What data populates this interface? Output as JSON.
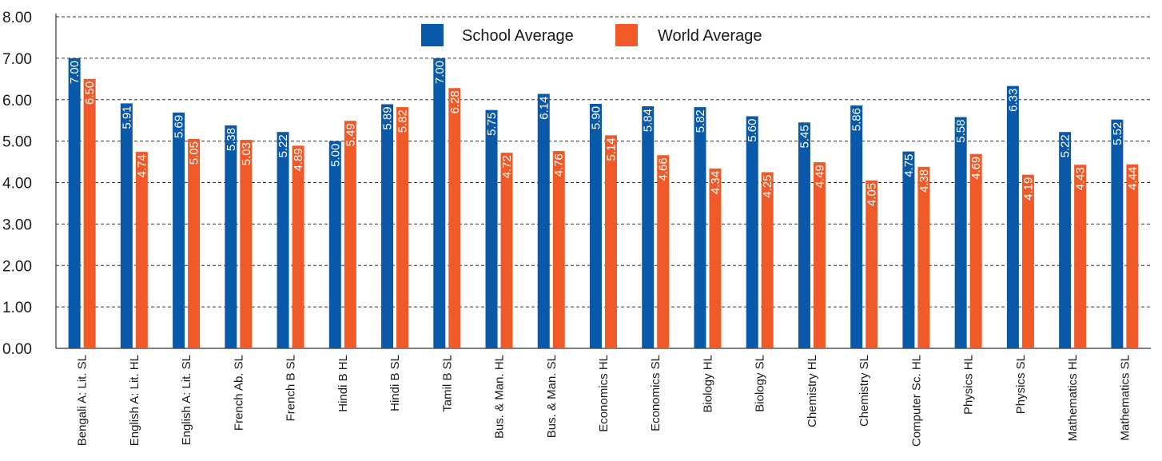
{
  "chart_data": {
    "type": "bar",
    "categories": [
      "Bengali A: Lit. SL",
      "English A: Lit. HL",
      "English A: Lit. SL",
      "French Ab. SL",
      "French B SL",
      "Hindi B HL",
      "Hindi B SL",
      "Tamil B SL",
      "Bus. & Man. HL",
      "Bus. & Man. SL",
      "Economics HL",
      "Economics SL",
      "Biology HL",
      "Biology SL",
      "Chemistry HL",
      "Chemistry SL",
      "Computer Sc. HL",
      "Physics HL",
      "Physics SL",
      "Mathematics HL",
      "Mathematics SL"
    ],
    "series": [
      {
        "name": "School Average",
        "color": "#0a58a8",
        "values": [
          7.0,
          5.91,
          5.69,
          5.38,
          5.22,
          5.0,
          5.89,
          7.0,
          5.75,
          6.14,
          5.9,
          5.84,
          5.82,
          5.6,
          5.45,
          5.86,
          4.75,
          5.58,
          6.33,
          5.22,
          5.52
        ]
      },
      {
        "name": "World Average",
        "color": "#f05a28",
        "values": [
          6.5,
          4.74,
          5.05,
          5.03,
          4.89,
          5.49,
          5.82,
          6.28,
          4.72,
          4.76,
          5.14,
          4.66,
          4.34,
          4.25,
          4.49,
          4.05,
          4.38,
          4.69,
          4.19,
          4.43,
          4.44
        ]
      }
    ],
    "value_labels": {
      "School Average": [
        "7.00",
        "5.91",
        "5.69",
        "5.38",
        "5.22",
        "5.00",
        "5.89",
        "7.00",
        "5.75",
        "6.14",
        "5.90",
        "5.84",
        "5.82",
        "5.60",
        "5.45",
        "5.86",
        "4.75",
        "5.58",
        "6.33",
        "5.22",
        "5.52"
      ],
      "World Average": [
        "6.50",
        "4.74",
        "5.05",
        "5.03",
        "4.89",
        "5.49",
        "5.82",
        "6.28",
        "4.72",
        "4.76",
        "5.14",
        "4.66",
        "4.34",
        "4.25",
        "4.49",
        "4.05",
        "4.38",
        "4.69",
        "4.19",
        "4.43",
        "4.44"
      ]
    },
    "yticks": [
      "0.00",
      "1.00",
      "2.00",
      "3.00",
      "4.00",
      "5.00",
      "6.00",
      "7.00",
      "8.00"
    ],
    "ylim": [
      0,
      8
    ],
    "grid": "dashed-horizontal",
    "legend": {
      "position": "top-center",
      "entries": [
        "School Average",
        "World Average"
      ]
    },
    "title": "",
    "xlabel": "",
    "ylabel": ""
  }
}
